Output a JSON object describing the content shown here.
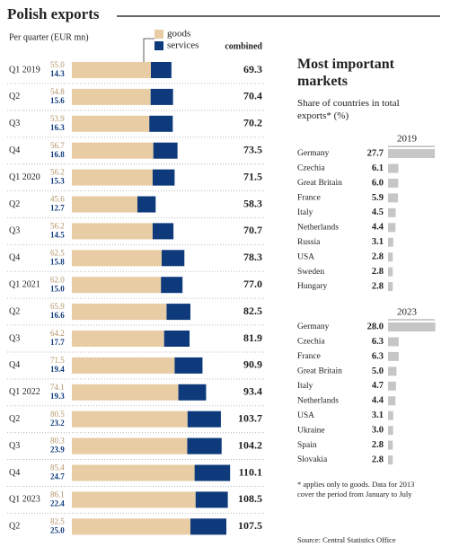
{
  "chart_data": [
    {
      "type": "bar",
      "stacked": true,
      "orientation": "horizontal",
      "title": "Polish exports",
      "subtitle": "Per quarter (EUR mn)",
      "categories": [
        "Q1 2019",
        "Q2",
        "Q3",
        "Q4",
        "Q1 2020",
        "Q2",
        "Q3",
        "Q4",
        "Q1 2021",
        "Q2",
        "Q3",
        "Q4",
        "Q1 2022",
        "Q2",
        "Q3",
        "Q4",
        "Q1 2023",
        "Q2"
      ],
      "series": [
        {
          "name": "goods",
          "color": "#e8ccA4",
          "values": [
            55.0,
            54.8,
            53.9,
            56.7,
            56.2,
            45.6,
            56.2,
            62.5,
            62.0,
            65.9,
            64.2,
            71.5,
            74.1,
            80.5,
            80.3,
            85.4,
            86.1,
            82.5
          ],
          "value_labels": [
            "55.0",
            "54.8",
            "53.9",
            "56.7",
            "56.2",
            "45.6",
            "56.2",
            "62.5",
            "62.0",
            "65.9",
            "64.2",
            "71.5",
            "74.1",
            "80.5",
            "80.3",
            "85.4",
            "86.1",
            "82.5"
          ]
        },
        {
          "name": "services",
          "color": "#0e3a7c",
          "values": [
            14.3,
            15.6,
            16.3,
            16.8,
            15.3,
            12.7,
            14.5,
            15.8,
            15.0,
            16.6,
            17.7,
            19.4,
            19.3,
            23.2,
            23.9,
            24.7,
            22.4,
            25.0
          ],
          "value_labels": [
            "14.3",
            "15.6",
            "16.3",
            "16.8",
            "15.3",
            "12.7",
            "14.5",
            "15.8",
            "15.0",
            "16.6",
            "17.7",
            "19.4",
            "19.3",
            "23.2",
            "23.9",
            "24.7",
            "22.4",
            "25.0"
          ]
        }
      ],
      "combined": {
        "name": "combined",
        "values": [
          69.3,
          70.4,
          70.2,
          73.5,
          71.5,
          58.3,
          70.7,
          78.3,
          77.0,
          82.5,
          81.9,
          90.9,
          93.4,
          103.7,
          104.2,
          110.1,
          108.5,
          107.5
        ],
        "value_labels": [
          "69.3",
          "70.4",
          "70.2",
          "73.5",
          "71.5",
          "58.3",
          "70.7",
          "78.3",
          "77.0",
          "82.5",
          "81.9",
          "90.9",
          "93.4",
          "103.7",
          "104.2",
          "110.1",
          "108.5",
          "107.5"
        ]
      }
    },
    {
      "type": "bar",
      "orientation": "horizontal",
      "title": "Most important markets",
      "subtitle": "Share of countries in total exports* (%)",
      "color": "#c6c6c6",
      "panels": [
        {
          "title": "2019",
          "categories": [
            "Germany",
            "Czechia",
            "Great Britain",
            "France",
            "Italy",
            "Netherlands",
            "Russia",
            "USA",
            "Sweden",
            "Hungary"
          ],
          "values": [
            27.7,
            6.1,
            6.0,
            5.9,
            4.5,
            4.4,
            3.1,
            2.8,
            2.8,
            2.8
          ],
          "value_labels": [
            "27.7",
            "6.1",
            "6.0",
            "5.9",
            "4.5",
            "4.4",
            "3.1",
            "2.8",
            "2.8",
            "2.8"
          ]
        },
        {
          "title": "2023",
          "categories": [
            "Germany",
            "Czechia",
            "France",
            "Great Britain",
            "Italy",
            "Netherlands",
            "USA",
            "Ukraine",
            "Spain",
            "Slovakia"
          ],
          "values": [
            28.0,
            6.3,
            6.3,
            5.0,
            4.7,
            4.4,
            3.1,
            3.0,
            2.8,
            2.8
          ],
          "value_labels": [
            "28.0",
            "6.3",
            "6.3",
            "5.0",
            "4.7",
            "4.4",
            "3.1",
            "3.0",
            "2.8",
            "2.8"
          ]
        }
      ],
      "footnote": "* applies only to goods. Data for 2013 cover the period from January to July",
      "source": "Source: Central Statistics Office"
    }
  ]
}
